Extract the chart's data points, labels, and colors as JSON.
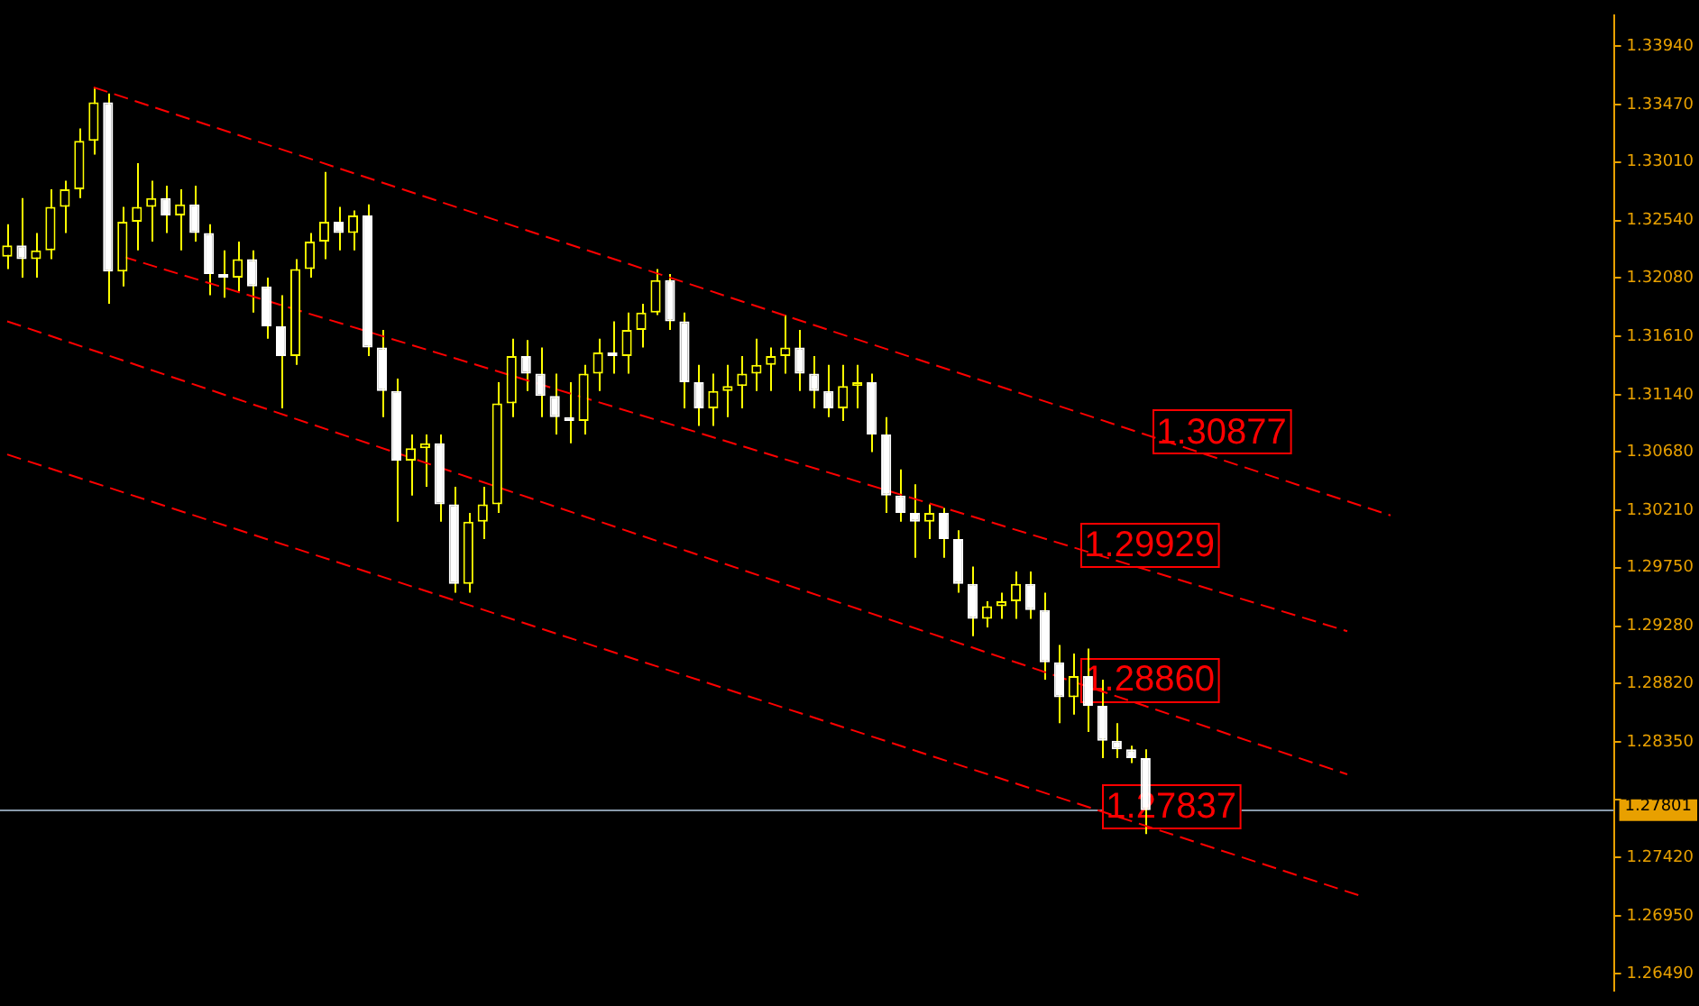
{
  "chart_data": {
    "type": "candlestick",
    "color": "#ffff00",
    "colors": [
      "#ffff00",
      "#ffffff",
      "#ffff00",
      "#ffff00",
      "#ffff00",
      "#ffff00",
      "#ffff00",
      "#ffffff",
      "#ffff00",
      "#ffff00",
      "#ffff00",
      "#ffffff",
      "#ffff00",
      "#ffffff",
      "#ffffff",
      "#ffffff",
      "#ffff00",
      "#ffffff",
      "#ffffff",
      "#ffffff",
      "#ffff00",
      "#ffff00",
      "#ffff00",
      "#ffffff",
      "#ffff00",
      "#ffffff",
      "#ffffff",
      "#ffffff",
      "#ffff00",
      "#ffff00",
      "#ffffff",
      "#ffffff",
      "#ffff00",
      "#ffff00",
      "#ffff00",
      "#ffff00",
      "#ffffff",
      "#ffffff",
      "#ffffff",
      "#ffffff",
      "#ffff00",
      "#ffff00",
      "#ffffff",
      "#ffff00",
      "#ffff00",
      "#ffff00",
      "#ffffff",
      "#ffffff",
      "#ffffff",
      "#ffff00",
      "#ffff00",
      "#ffff00",
      "#ffff00",
      "#ffff00",
      "#ffff00",
      "#ffffff",
      "#ffffff",
      "#ffffff",
      "#ffff00",
      "#ffff00",
      "#ffffff",
      "#ffffff",
      "#ffffff",
      "#ffffff",
      "#ffff00",
      "#ffffff",
      "#ffffff",
      "#ffffff",
      "#ffff00",
      "#ffff00",
      "#ffff00",
      "#ffffff",
      "#ffffff",
      "#ffffff",
      "#ffff00",
      "#ffffff",
      "#ffffff",
      "#ffffff",
      "#ffffff",
      "#ffffff",
      null,
      null,
      null,
      null,
      null,
      null,
      null,
      null,
      null,
      null,
      null,
      null,
      null,
      null,
      null,
      null,
      null,
      null,
      null,
      null,
      null,
      null,
      null,
      null,
      null,
      null,
      null,
      null,
      null,
      null,
      null,
      null
    ],
    "grid": false,
    "legend": false,
    "tick_labels": "y",
    "categories": [
      null,
      null,
      null,
      null,
      null,
      null,
      null,
      null,
      null,
      null,
      null,
      null,
      null,
      null,
      null,
      null,
      null,
      null,
      null,
      null,
      null,
      null,
      null,
      null,
      null,
      null,
      null,
      null,
      null,
      null,
      null,
      null,
      null,
      null,
      null,
      null,
      null,
      null,
      null,
      null,
      null,
      null,
      null,
      null,
      null,
      null,
      null,
      null,
      null,
      null,
      null,
      null,
      null,
      null,
      null,
      null,
      null,
      null,
      null,
      null,
      null,
      null,
      null,
      null,
      null,
      null,
      null,
      null,
      null,
      null,
      null,
      null,
      null,
      null,
      null,
      null,
      null,
      null,
      null,
      null,
      null,
      null,
      null,
      null,
      null,
      null,
      null,
      null,
      null,
      null,
      null,
      null,
      null,
      null,
      null,
      null,
      null,
      null,
      null,
      null,
      null,
      null,
      null,
      null,
      null,
      null,
      null,
      null,
      null,
      null,
      null,
      null
    ],
    "ohlc": [
      [
        1.3225,
        1.3251,
        1.3215,
        1.3234
      ],
      [
        1.3234,
        1.3272,
        1.3208,
        1.3223
      ],
      [
        1.3223,
        1.3244,
        1.3208,
        1.323
      ],
      [
        1.323,
        1.3279,
        1.3223,
        1.3265
      ],
      [
        1.3265,
        1.3286,
        1.3244,
        1.3279
      ],
      [
        1.3279,
        1.3328,
        1.3272,
        1.3318
      ],
      [
        1.3318,
        1.336,
        1.3307,
        1.3349
      ],
      [
        1.3349,
        1.3356,
        1.3187,
        1.3213
      ],
      [
        1.3213,
        1.3265,
        1.3201,
        1.3253
      ],
      [
        1.3253,
        1.33,
        1.323,
        1.3265
      ],
      [
        1.3265,
        1.3286,
        1.3237,
        1.3272
      ],
      [
        1.3272,
        1.3282,
        1.3244,
        1.3258
      ],
      [
        1.3258,
        1.3279,
        1.323,
        1.3267
      ],
      [
        1.3267,
        1.3282,
        1.3237,
        1.3244
      ],
      [
        1.3244,
        1.3251,
        1.3194,
        1.3211
      ],
      [
        1.3211,
        1.323,
        1.3192,
        1.3208
      ],
      [
        1.3208,
        1.3237,
        1.3197,
        1.3223
      ],
      [
        1.3223,
        1.323,
        1.318,
        1.3201
      ],
      [
        1.3201,
        1.3208,
        1.3159,
        1.3169
      ],
      [
        1.3169,
        1.3194,
        1.3103,
        1.3145
      ],
      [
        1.3145,
        1.3223,
        1.3138,
        1.3215
      ],
      [
        1.3215,
        1.3244,
        1.3208,
        1.3237
      ],
      [
        1.3237,
        1.3293,
        1.3223,
        1.3253
      ],
      [
        1.3253,
        1.3265,
        1.323,
        1.3244
      ],
      [
        1.3244,
        1.3262,
        1.323,
        1.3258
      ],
      [
        1.3258,
        1.3267,
        1.3145,
        1.3152
      ],
      [
        1.3152,
        1.3166,
        1.3096,
        1.3117
      ],
      [
        1.3117,
        1.3127,
        1.3012,
        1.3061
      ],
      [
        1.3061,
        1.3082,
        1.3033,
        1.3071
      ],
      [
        1.3071,
        1.3082,
        1.304,
        1.3075
      ],
      [
        1.3075,
        1.3082,
        1.3012,
        1.3026
      ],
      [
        1.3026,
        1.304,
        1.2955,
        1.2962
      ],
      [
        1.2962,
        1.3019,
        1.2955,
        1.3012
      ],
      [
        1.3012,
        1.304,
        1.2998,
        1.3026
      ],
      [
        1.3026,
        1.3124,
        1.3019,
        1.3107
      ],
      [
        1.3107,
        1.3159,
        1.3096,
        1.3145
      ],
      [
        1.3145,
        1.3158,
        1.3117,
        1.3131
      ],
      [
        1.3131,
        1.3152,
        1.3096,
        1.3113
      ],
      [
        1.3113,
        1.3131,
        1.3082,
        1.3096
      ],
      [
        1.3096,
        1.3124,
        1.3075,
        1.3093
      ],
      [
        1.3093,
        1.3138,
        1.3082,
        1.3131
      ],
      [
        1.3131,
        1.3159,
        1.3117,
        1.3148
      ],
      [
        1.3148,
        1.3173,
        1.3131,
        1.3145
      ],
      [
        1.3145,
        1.318,
        1.3131,
        1.3166
      ],
      [
        1.3166,
        1.3187,
        1.3152,
        1.318
      ],
      [
        1.318,
        1.3215,
        1.3178,
        1.3206
      ],
      [
        1.3206,
        1.3211,
        1.3166,
        1.3173
      ],
      [
        1.3173,
        1.318,
        1.3103,
        1.3124
      ],
      [
        1.3124,
        1.3138,
        1.3089,
        1.3103
      ],
      [
        1.3103,
        1.3131,
        1.3089,
        1.3117
      ],
      [
        1.3117,
        1.3138,
        1.3096,
        1.3121
      ],
      [
        1.3121,
        1.3145,
        1.3103,
        1.3131
      ],
      [
        1.3131,
        1.3159,
        1.3117,
        1.3138
      ],
      [
        1.3138,
        1.3152,
        1.3117,
        1.3145
      ],
      [
        1.3145,
        1.3178,
        1.3131,
        1.3152
      ],
      [
        1.3152,
        1.3166,
        1.3117,
        1.3131
      ],
      [
        1.3131,
        1.3145,
        1.3103,
        1.3117
      ],
      [
        1.3117,
        1.3138,
        1.3096,
        1.3103
      ],
      [
        1.3103,
        1.3138,
        1.3093,
        1.3121
      ],
      [
        1.3121,
        1.3138,
        1.3103,
        1.3124
      ],
      [
        1.3124,
        1.3131,
        1.3068,
        1.3082
      ],
      [
        1.3082,
        1.3096,
        1.3019,
        1.3033
      ],
      [
        1.3033,
        1.3054,
        1.3012,
        1.3019
      ],
      [
        1.3019,
        1.3042,
        1.2983,
        1.3012
      ],
      [
        1.3012,
        1.3026,
        1.2998,
        1.3019
      ],
      [
        1.3019,
        1.3023,
        1.2983,
        1.2998
      ],
      [
        1.2998,
        1.3005,
        1.2955,
        1.2962
      ],
      [
        1.2962,
        1.2976,
        1.292,
        1.2934
      ],
      [
        1.2934,
        1.2948,
        1.2927,
        1.2944
      ],
      [
        1.2944,
        1.2955,
        1.2934,
        1.2948
      ],
      [
        1.2948,
        1.2972,
        1.2934,
        1.2962
      ],
      [
        1.2962,
        1.2972,
        1.2934,
        1.2941
      ],
      [
        1.2941,
        1.2955,
        1.2885,
        1.2899
      ],
      [
        1.2899,
        1.2913,
        1.285,
        1.2871
      ],
      [
        1.2871,
        1.2906,
        1.2857,
        1.2888
      ],
      [
        1.2888,
        1.291,
        1.2843,
        1.2864
      ],
      [
        1.2864,
        1.2885,
        1.2822,
        1.2836
      ],
      [
        1.2836,
        1.285,
        1.2822,
        1.2829
      ],
      [
        1.2829,
        1.2832,
        1.2818,
        1.2822
      ],
      [
        1.2822,
        1.2829,
        1.2761,
        1.27801
      ],
      null,
      null,
      null,
      null,
      null,
      null,
      null,
      null,
      null,
      null,
      null,
      null,
      null,
      null,
      null,
      null,
      null,
      null,
      null,
      null,
      null,
      null,
      null,
      null,
      null,
      null,
      null,
      null,
      null,
      null,
      null,
      null
    ],
    "series": [
      {
        "type": "line",
        "color": "#ff0000",
        "line_style": "dashed",
        "marker": "none",
        "values": [
          null,
          null,
          null,
          null,
          null,
          null,
          1.3361,
          null,
          null,
          null,
          null,
          null,
          null,
          null,
          null,
          null,
          null,
          null,
          null,
          null,
          null,
          null,
          null,
          null,
          null,
          null,
          null,
          null,
          null,
          null,
          null,
          null,
          null,
          null,
          null,
          null,
          null,
          null,
          null,
          null,
          null,
          null,
          null,
          null,
          null,
          null,
          null,
          null,
          null,
          null,
          null,
          null,
          null,
          null,
          null,
          null,
          null,
          null,
          null,
          null,
          null,
          null,
          null,
          null,
          null,
          null,
          null,
          null,
          null,
          null,
          null,
          null,
          null,
          null,
          null,
          null,
          null,
          null,
          null,
          null,
          null,
          null,
          null,
          null,
          null,
          null,
          null,
          null,
          null,
          null,
          null,
          null,
          null,
          null,
          null,
          null,
          1.3017,
          null,
          null,
          null,
          null,
          null,
          null,
          null,
          null,
          null,
          null,
          null,
          null,
          null,
          null,
          null
        ]
      },
      {
        "type": "line",
        "color": "#ff0000",
        "line_style": "dashed",
        "marker": "none",
        "values": [
          null,
          null,
          null,
          null,
          null,
          null,
          null,
          null,
          1.3225,
          null,
          null,
          null,
          null,
          null,
          null,
          null,
          null,
          null,
          null,
          null,
          null,
          null,
          null,
          null,
          null,
          null,
          null,
          null,
          null,
          null,
          null,
          null,
          null,
          null,
          null,
          null,
          null,
          null,
          null,
          null,
          null,
          null,
          null,
          null,
          null,
          null,
          null,
          null,
          null,
          null,
          null,
          null,
          null,
          null,
          null,
          null,
          null,
          null,
          null,
          null,
          null,
          null,
          null,
          null,
          null,
          null,
          null,
          null,
          null,
          null,
          null,
          null,
          null,
          null,
          null,
          null,
          null,
          null,
          null,
          null,
          null,
          null,
          null,
          null,
          null,
          null,
          null,
          null,
          null,
          null,
          null,
          null,
          null,
          1.2924,
          null,
          null,
          null,
          null,
          null,
          null,
          null,
          null,
          null,
          null,
          null,
          null,
          null,
          null,
          null,
          null,
          null,
          null
        ]
      },
      {
        "type": "line",
        "color": "#ff0000",
        "line_style": "dashed",
        "marker": "none",
        "values": [
          1.3173,
          null,
          null,
          null,
          null,
          null,
          null,
          null,
          null,
          null,
          null,
          null,
          null,
          null,
          null,
          null,
          null,
          null,
          null,
          null,
          null,
          null,
          null,
          null,
          null,
          null,
          null,
          null,
          null,
          null,
          null,
          null,
          null,
          null,
          null,
          null,
          null,
          null,
          null,
          null,
          null,
          null,
          null,
          null,
          null,
          null,
          null,
          null,
          null,
          null,
          null,
          null,
          null,
          null,
          null,
          null,
          null,
          null,
          null,
          null,
          null,
          null,
          null,
          null,
          null,
          null,
          null,
          null,
          null,
          null,
          null,
          null,
          null,
          null,
          null,
          null,
          null,
          null,
          null,
          null,
          null,
          null,
          null,
          null,
          null,
          null,
          null,
          null,
          null,
          null,
          null,
          null,
          null,
          1.2809,
          null,
          null,
          null,
          null,
          null,
          null,
          null,
          null,
          null,
          null,
          null,
          null,
          null,
          null,
          null,
          null,
          null,
          null
        ]
      },
      {
        "type": "line",
        "color": "#ff0000",
        "line_style": "dashed",
        "marker": "none",
        "values": [
          1.3066,
          null,
          null,
          null,
          null,
          null,
          null,
          null,
          null,
          null,
          null,
          null,
          null,
          null,
          null,
          null,
          null,
          null,
          null,
          null,
          null,
          null,
          null,
          null,
          null,
          null,
          null,
          null,
          null,
          null,
          null,
          null,
          null,
          null,
          null,
          null,
          null,
          null,
          null,
          null,
          null,
          null,
          null,
          null,
          null,
          null,
          null,
          null,
          null,
          null,
          null,
          null,
          null,
          null,
          null,
          null,
          null,
          null,
          null,
          null,
          null,
          null,
          null,
          null,
          null,
          null,
          null,
          null,
          null,
          null,
          null,
          null,
          null,
          null,
          null,
          null,
          null,
          null,
          null,
          null,
          null,
          null,
          null,
          null,
          null,
          null,
          null,
          null,
          null,
          null,
          null,
          null,
          null,
          null,
          1.2711,
          null,
          null,
          null,
          null,
          null,
          null,
          null,
          null,
          null,
          null,
          null,
          null,
          null,
          null,
          null,
          null,
          null
        ]
      }
    ],
    "annotations": [
      "1.30877",
      "1.29929",
      "1.28860",
      "1.27837"
    ],
    "ref_lines": [
      {
        "axis": "y",
        "value": 1.27801,
        "label": "1.27801",
        "color": "#8899aa"
      }
    ],
    "ylim": [
      1.2635,
      1.3419
    ],
    "yticks": [
      {
        "value": 1.3394,
        "label": "1.33940"
      },
      {
        "value": 1.3347,
        "label": "1.33470"
      },
      {
        "value": 1.3301,
        "label": "1.33010"
      },
      {
        "value": 1.3254,
        "label": "1.32540"
      },
      {
        "value": 1.3208,
        "label": "1.32080"
      },
      {
        "value": 1.3161,
        "label": "1.31610"
      },
      {
        "value": 1.3114,
        "label": "1.31140"
      },
      {
        "value": 1.3068,
        "label": "1.30680"
      },
      {
        "value": 1.3021,
        "label": "1.30210"
      },
      {
        "value": 1.2975,
        "label": "1.29750"
      },
      {
        "value": 1.2928,
        "label": "1.29280"
      },
      {
        "value": 1.2882,
        "label": "1.28820"
      },
      {
        "value": 1.2835,
        "label": "1.28350"
      },
      {
        "value": 1.2789,
        "label": null
      },
      {
        "value": 1.2742,
        "label": "1.27420"
      },
      {
        "value": 1.2695,
        "label": "1.26950"
      },
      {
        "value": 1.2649,
        "label": "1.26490"
      }
    ]
  }
}
